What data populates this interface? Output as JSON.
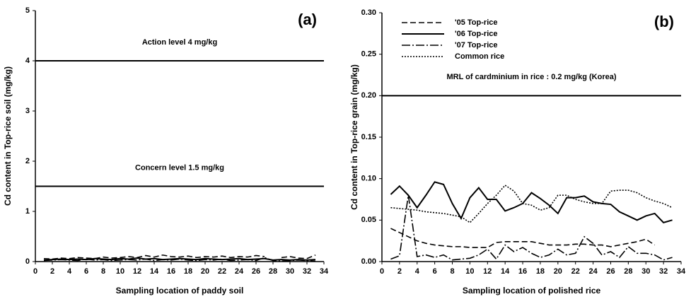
{
  "chart_data": [
    {
      "type": "line",
      "title": "(a)",
      "x_label": "Sampling location of paddy soil",
      "y_label": "Cd content in Top-rice soil (mg/kg)",
      "xlim": [
        0,
        34
      ],
      "xticks": [
        0,
        2,
        4,
        6,
        8,
        10,
        12,
        14,
        16,
        18,
        20,
        22,
        24,
        26,
        28,
        30,
        32,
        34
      ],
      "ylim": [
        0,
        5
      ],
      "yticks": [
        0,
        1,
        2,
        3,
        4,
        5
      ],
      "ref_lines": [
        {
          "value": 4,
          "label": "Action level 4 mg/kg"
        },
        {
          "value": 1.5,
          "label": "Concern level 1.5 mg/kg"
        }
      ],
      "x": [
        1,
        2,
        3,
        4,
        5,
        6,
        7,
        8,
        9,
        10,
        11,
        12,
        13,
        14,
        15,
        16,
        17,
        18,
        19,
        20,
        21,
        22,
        23,
        24,
        25,
        26,
        27,
        28,
        29,
        30,
        31,
        32,
        33
      ],
      "series": [
        {
          "color": "#000",
          "dash": "dashed",
          "values": [
            0.06,
            0.05,
            0.07,
            0.06,
            0.08,
            0.07,
            0.06,
            0.09,
            0.07,
            0.08,
            0.1,
            0.08,
            0.12,
            0.09,
            0.13,
            0.1,
            0.09,
            0.11,
            0.08,
            0.1,
            0.09,
            0.11,
            0.08,
            0.1,
            0.09,
            0.12,
            0.1,
            null,
            0.08,
            0.1,
            0.07,
            0.06,
            0.13
          ]
        },
        {
          "color": "#000",
          "dash": "solid",
          "values": [
            0.03,
            0.04,
            0.05,
            0.04,
            0.05,
            0.04,
            0.06,
            0.05,
            0.04,
            0.06,
            0.05,
            0.07,
            0.05,
            0.06,
            0.04,
            0.05,
            0.06,
            0.05,
            0.04,
            0.06,
            0.05,
            0.04,
            0.05,
            0.06,
            0.04,
            0.05,
            0.06,
            0.03,
            0.04,
            0.03,
            0.04,
            0.03,
            0.04
          ]
        },
        {
          "color": "#000",
          "dash": "dashdot",
          "values": [
            0.02,
            0.03,
            0.04,
            0.03,
            0.02,
            0.05,
            0.03,
            0.04,
            0.02,
            0.03,
            0.04,
            0.03,
            0.05,
            0.02,
            0.04,
            0.03,
            0.05,
            0.03,
            0.02,
            0.04,
            0.03,
            0.05,
            0.02,
            0.03,
            0.04,
            0.02,
            0.08,
            0.02,
            0.01,
            0.02,
            0.03,
            0.02,
            0.01
          ]
        }
      ]
    },
    {
      "type": "line",
      "title": "(b)",
      "x_label": "Sampling location of polished rice",
      "y_label": "Cd content in Top-rice grain (mg/kg)",
      "xlim": [
        0,
        34
      ],
      "xticks": [
        0,
        2,
        4,
        6,
        8,
        10,
        12,
        14,
        16,
        18,
        20,
        22,
        24,
        26,
        28,
        30,
        32,
        34
      ],
      "ylim": [
        0,
        0.3
      ],
      "yticks": [
        {
          "value": 0,
          "label": "0.00"
        },
        0.05,
        {
          "value": 0.1,
          "label": "0.10"
        },
        0.15,
        {
          "value": 0.2,
          "label": "0.20"
        },
        0.25,
        {
          "value": 0.3,
          "label": "0.30"
        }
      ],
      "ref_lines": [
        {
          "value": 0.2,
          "label": "MRL of cardminium  in rice : 0.2 mg/kg (Korea)"
        }
      ],
      "legend": "upper left",
      "x": [
        1,
        2,
        3,
        4,
        5,
        6,
        7,
        8,
        9,
        10,
        11,
        12,
        13,
        14,
        15,
        16,
        17,
        18,
        19,
        20,
        21,
        22,
        23,
        24,
        25,
        26,
        27,
        28,
        29,
        30,
        31,
        32,
        33
      ],
      "series": [
        {
          "name": "'05 Top-rice",
          "color": "#000",
          "dash": "dashed",
          "values": [
            0.04,
            0.035,
            0.03,
            0.025,
            0.022,
            0.02,
            0.019,
            0.018,
            0.018,
            0.017,
            0.017,
            0.017,
            0.023,
            0.024,
            0.024,
            0.024,
            0.024,
            0.022,
            0.02,
            0.02,
            0.02,
            0.021,
            0.021,
            0.02,
            0.02,
            0.018,
            0.02,
            0.022,
            0.024,
            0.027,
            0.02,
            null,
            null
          ]
        },
        {
          "name": "'06 Top-rice",
          "color": "#000",
          "dash": "solid",
          "values": [
            0.081,
            0.091,
            0.08,
            0.065,
            0.08,
            0.096,
            0.093,
            0.07,
            0.052,
            0.077,
            0.089,
            0.075,
            0.075,
            0.061,
            0.065,
            0.07,
            0.083,
            0.076,
            0.068,
            0.058,
            0.077,
            0.077,
            0.079,
            0.072,
            0.07,
            0.069,
            0.06,
            0.055,
            0.05,
            0.055,
            0.058,
            0.047,
            0.05
          ]
        },
        {
          "name": "'07 Top-rice",
          "color": "#000",
          "dash": "dashdot",
          "values": [
            0.003,
            0.007,
            0.08,
            0.006,
            0.008,
            0.005,
            0.008,
            0.002,
            0.003,
            0.004,
            0.008,
            0.015,
            0.003,
            0.02,
            0.012,
            0.017,
            0.01,
            0.005,
            0.008,
            0.015,
            0.008,
            0.01,
            0.03,
            0.022,
            0.008,
            0.012,
            0.005,
            0.018,
            0.01,
            0.01,
            0.008,
            0.002,
            0.005
          ]
        },
        {
          "name": "Common rice",
          "color": "#000",
          "dash": "dotted",
          "values": [
            0.065,
            0.064,
            0.063,
            0.062,
            0.06,
            0.059,
            0.058,
            0.056,
            0.054,
            0.047,
            0.058,
            0.07,
            0.08,
            0.092,
            0.085,
            0.07,
            0.068,
            0.062,
            0.065,
            0.08,
            0.08,
            0.075,
            0.072,
            0.07,
            0.07,
            0.085,
            0.086,
            0.086,
            0.083,
            0.077,
            0.073,
            0.07,
            0.065
          ]
        }
      ]
    }
  ]
}
